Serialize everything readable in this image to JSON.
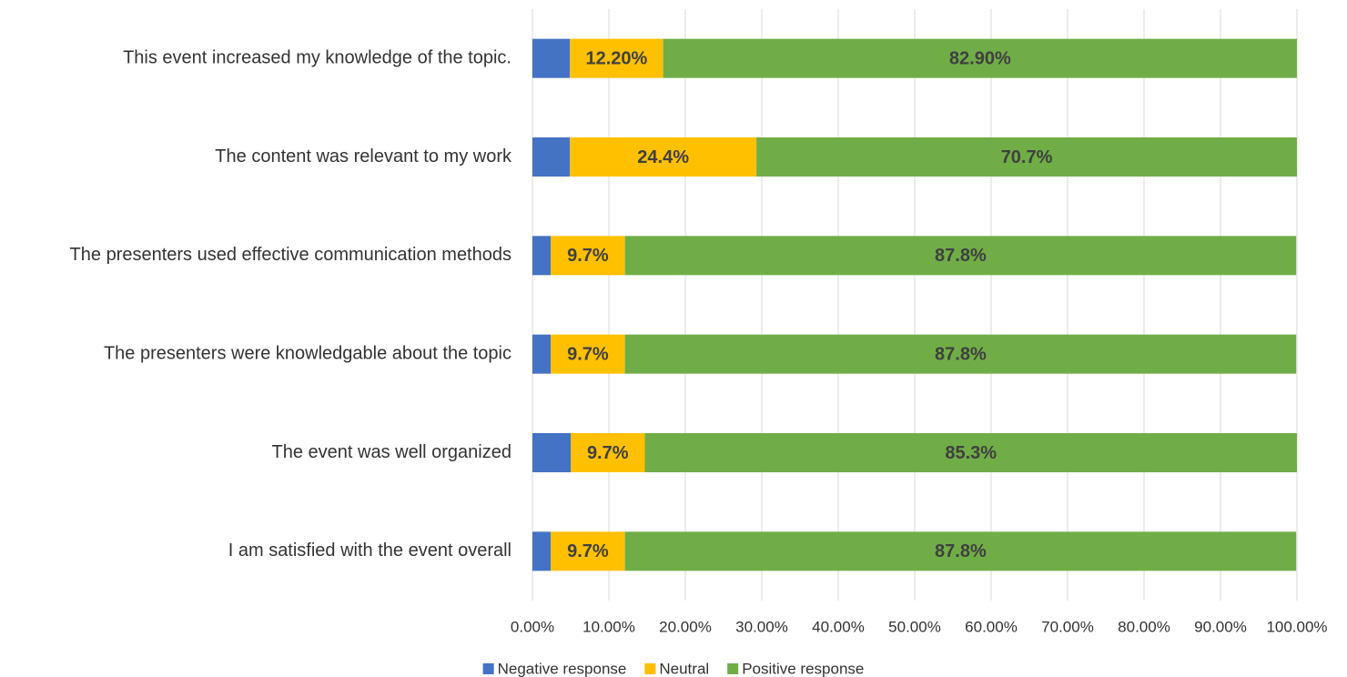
{
  "chart_data": {
    "type": "stacked_barh",
    "categories": [
      "This event increased my knowledge of the topic.",
      "The content was relevant to my work",
      "The presenters used effective communication methods",
      "The presenters were knowledgable about the topic",
      "The event was well organized",
      "I am satisfied with the event overall"
    ],
    "series": [
      {
        "name": "Negative response",
        "color": "#4472c4",
        "values": [
          4.9,
          4.9,
          2.4,
          2.4,
          5.0,
          2.4
        ]
      },
      {
        "name": "Neutral",
        "color": "#ffc000",
        "values": [
          12.2,
          24.4,
          9.7,
          9.7,
          9.7,
          9.7
        ],
        "value_labels": [
          "12.20%",
          "24.4%",
          "9.7%",
          "9.7%",
          "9.7%",
          "9.7%"
        ]
      },
      {
        "name": "Positive response",
        "color": "#70ad47",
        "values": [
          82.9,
          70.7,
          87.8,
          87.8,
          85.3,
          87.8
        ],
        "value_labels": [
          "82.90%",
          "70.7%",
          "87.8%",
          "87.8%",
          "85.3%",
          "87.8%"
        ]
      }
    ],
    "xlim": [
      0,
      100
    ],
    "xticks": [
      {
        "value": 0,
        "label": "0.00%"
      },
      {
        "value": 10,
        "label": "10.00%"
      },
      {
        "value": 20,
        "label": "20.00%"
      },
      {
        "value": 30,
        "label": "30.00%"
      },
      {
        "value": 40,
        "label": "40.00%"
      },
      {
        "value": 50,
        "label": "50.00%"
      },
      {
        "value": 60,
        "label": "60.00%"
      },
      {
        "value": 70,
        "label": "70.00%"
      },
      {
        "value": 80,
        "label": "80.00%"
      },
      {
        "value": 90,
        "label": "90.00%"
      },
      {
        "value": 100,
        "label": "100.00%"
      }
    ],
    "grid": true,
    "legend": "bottom"
  }
}
